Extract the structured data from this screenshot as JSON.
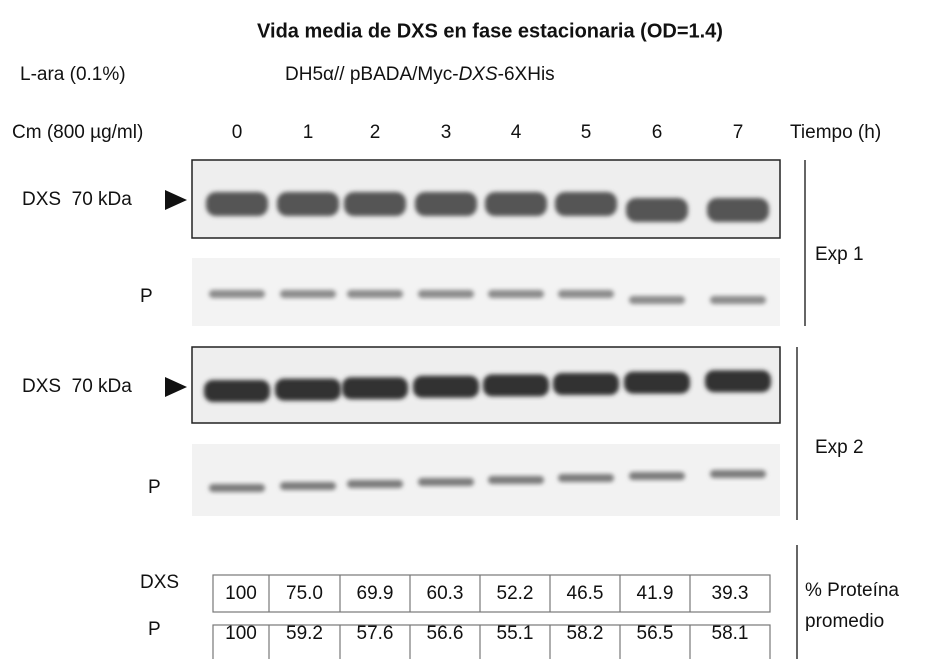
{
  "header": {
    "title": "Vida media de DXS en fase estacionaria (OD=1.4)",
    "inducer": "L-ara (0.1%)",
    "strain": [
      "DH5α// pBADA/Myc-",
      "DXS",
      "-6XHis"
    ]
  },
  "lanes": {
    "treatment": "Cm (800 µg/ml)",
    "times": [
      "0",
      "1",
      "2",
      "3",
      "4",
      "5",
      "6",
      "7"
    ],
    "unit": "Tiempo (h)"
  },
  "blots": [
    {
      "experiment": "Exp 1",
      "target_label": "DXS  70 kDa",
      "control_label": "P"
    },
    {
      "experiment": "Exp 2",
      "target_label": "DXS  70 kDa",
      "control_label": "P"
    }
  ],
  "table": {
    "caption": [
      "% Proteína",
      "promedio"
    ],
    "rows": [
      {
        "label": "DXS",
        "values": [
          "100",
          "75.0",
          "69.9",
          "60.3",
          "52.2",
          "46.5",
          "41.9",
          "39.3"
        ]
      },
      {
        "label": "P",
        "values": [
          "100",
          "59.2",
          "57.6",
          "56.6",
          "55.1",
          "58.2",
          "56.5",
          "58.1"
        ]
      }
    ]
  }
}
